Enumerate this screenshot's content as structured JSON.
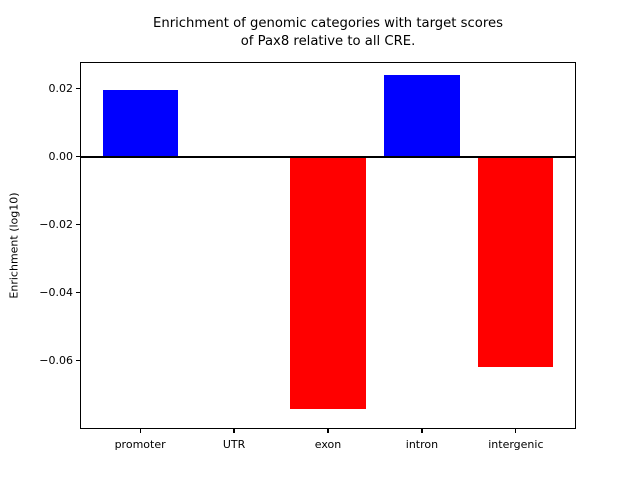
{
  "figure": {
    "title_lines": [
      "Enrichment of genomic categories with target scores",
      "of Pax8 relative to all CRE."
    ],
    "ylabel": "Enrichment (log10)"
  },
  "chart_data": {
    "type": "bar",
    "title": "Enrichment of genomic categories with target scores\nof Pax8 relative to all CRE.",
    "xlabel": "",
    "ylabel": "Enrichment (log10)",
    "categories": [
      "promoter",
      "UTR",
      "exon",
      "intron",
      "intergenic"
    ],
    "values": [
      0.0197,
      0.0,
      -0.0743,
      0.0242,
      -0.0619
    ],
    "positive_color": "#0000ff",
    "negative_color": "#ff0000",
    "background_color": "#ffffff",
    "axis_color": "#000000",
    "ylim": [
      -0.0801,
      0.0279
    ],
    "yticks": [
      0.02,
      0.0,
      -0.02,
      -0.04,
      -0.06
    ],
    "ytick_labels": [
      "0.02",
      "0.00",
      "−0.02",
      "−0.04",
      "−0.06"
    ],
    "zero_line": true,
    "grid": false,
    "legend": null
  }
}
